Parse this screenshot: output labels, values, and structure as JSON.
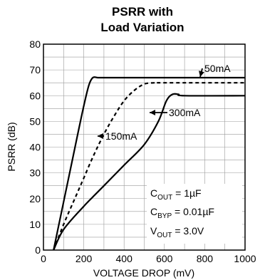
{
  "chart_data": {
    "type": "line",
    "title": [
      "PSRR with",
      "Load Variation"
    ],
    "xlabel": "VOLTAGE DROP (mV)",
    "ylabel": "PSRR (dB)",
    "xlim": [
      0,
      1000
    ],
    "ylim": [
      0,
      80
    ],
    "x_ticks": [
      0,
      200,
      400,
      600,
      800,
      1000
    ],
    "y_ticks": [
      0,
      10,
      20,
      30,
      40,
      50,
      60,
      70,
      80
    ],
    "grid": true,
    "series": [
      {
        "name": "50mA",
        "style": "solid",
        "points": [
          [
            50,
            0
          ],
          [
            90,
            15
          ],
          [
            130,
            30
          ],
          [
            170,
            45
          ],
          [
            200,
            56
          ],
          [
            225,
            64
          ],
          [
            245,
            67
          ],
          [
            270,
            67
          ],
          [
            300,
            67
          ],
          [
            400,
            67
          ],
          [
            600,
            67
          ],
          [
            1000,
            67
          ]
        ]
      },
      {
        "name": "150mA",
        "style": "dashed",
        "points": [
          [
            50,
            0
          ],
          [
            100,
            10
          ],
          [
            150,
            19
          ],
          [
            200,
            28
          ],
          [
            250,
            37
          ],
          [
            300,
            45
          ],
          [
            350,
            52
          ],
          [
            400,
            58
          ],
          [
            450,
            62
          ],
          [
            500,
            64.5
          ],
          [
            550,
            65
          ],
          [
            600,
            65
          ],
          [
            1000,
            65
          ]
        ]
      },
      {
        "name": "300mA",
        "style": "solid",
        "points": [
          [
            50,
            0
          ],
          [
            100,
            8
          ],
          [
            200,
            17
          ],
          [
            300,
            25
          ],
          [
            400,
            33
          ],
          [
            500,
            41
          ],
          [
            570,
            50
          ],
          [
            610,
            58
          ],
          [
            640,
            60.5
          ],
          [
            670,
            60.5
          ],
          [
            700,
            60
          ],
          [
            1000,
            60
          ]
        ]
      }
    ],
    "labels": [
      {
        "series": "50mA",
        "text": "50mA"
      },
      {
        "series": "300mA",
        "text": "300mA"
      },
      {
        "series": "150mA",
        "text": "150mA"
      }
    ],
    "conditions": [
      {
        "main": "C",
        "sub": "OUT",
        "rest": " = 1µF"
      },
      {
        "main": "C",
        "sub": "BYP",
        "rest": " = 0.01µF"
      },
      {
        "main": "V",
        "sub": "OUT",
        "rest": " = 3.0V"
      }
    ]
  }
}
